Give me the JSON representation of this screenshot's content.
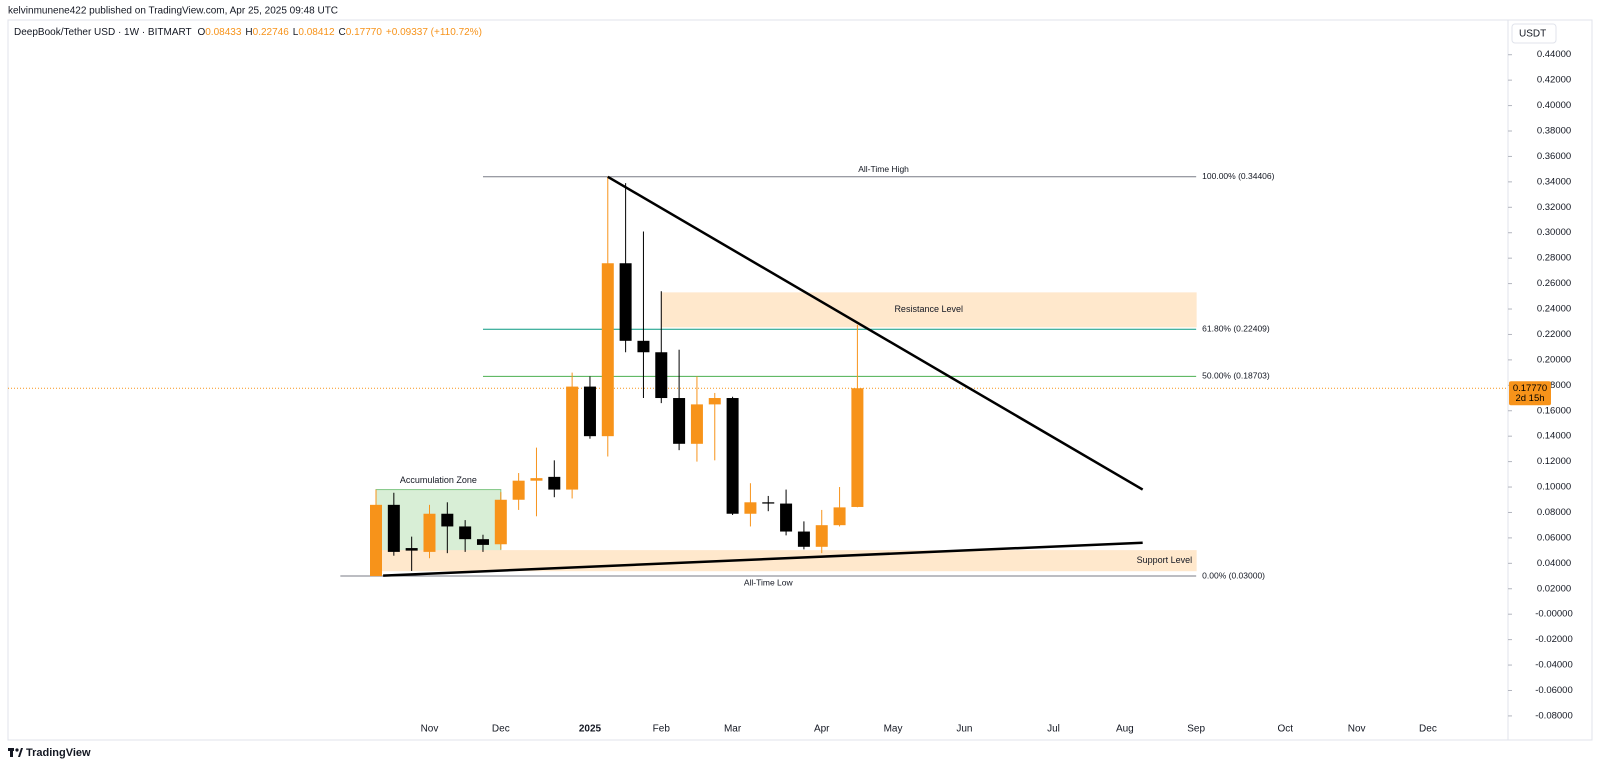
{
  "header": {
    "published": "kelvinmunene422 published on TradingView.com, Apr 25, 2025 09:48 UTC"
  },
  "footer": {
    "brand": "TradingView"
  },
  "chart_data": {
    "type": "candlestick",
    "title": "DeepBook/Tether USD · 1W · BITMART",
    "ohlc_legend": [
      {
        "key": "O",
        "value": "0.08433"
      },
      {
        "key": "H",
        "value": "0.22746"
      },
      {
        "key": "L",
        "value": "0.08412"
      },
      {
        "key": "C",
        "value": "0.17770"
      }
    ],
    "change": "+0.09337 (+110.72%)",
    "currency": "USDT",
    "x": [
      0,
      1,
      2,
      3,
      4,
      5,
      6,
      7,
      8,
      9,
      10,
      11,
      12,
      13,
      14,
      15,
      16,
      17,
      18,
      19,
      20,
      21,
      22,
      23,
      24,
      25,
      26,
      27
    ],
    "open": [
      0.03,
      0.086,
      0.052,
      0.049,
      0.079,
      0.069,
      0.059,
      0.055,
      0.09,
      0.105,
      0.108,
      0.098,
      0.179,
      0.14,
      0.276,
      0.215,
      0.206,
      0.17,
      0.134,
      0.165,
      0.17,
      0.079,
      0.088,
      0.087,
      0.065,
      0.053,
      0.07,
      0.08433
    ],
    "high": [
      0.098,
      0.0955,
      0.061,
      0.086,
      0.088,
      0.074,
      0.0625,
      0.096,
      0.111,
      0.131,
      0.121,
      0.19,
      0.187,
      0.34406,
      0.339,
      0.301,
      0.254,
      0.208,
      0.187,
      0.174,
      0.171,
      0.103,
      0.093,
      0.098,
      0.073,
      0.082,
      0.1,
      0.22746
    ],
    "low": [
      0.03,
      0.046,
      0.034,
      0.044,
      0.048,
      0.049,
      0.049,
      0.051,
      0.082,
      0.077,
      0.092,
      0.091,
      0.138,
      0.124,
      0.206,
      0.17,
      0.166,
      0.129,
      0.12,
      0.121,
      0.078,
      0.069,
      0.081,
      0.062,
      0.051,
      0.048,
      0.069,
      0.08412
    ],
    "close": [
      0.086,
      0.049,
      0.05,
      0.079,
      0.069,
      0.059,
      0.0545,
      0.09,
      0.105,
      0.107,
      0.098,
      0.179,
      0.14,
      0.276,
      0.215,
      0.206,
      0.17,
      0.134,
      0.165,
      0.17,
      0.079,
      0.088,
      0.087,
      0.065,
      0.053,
      0.07,
      0.084,
      0.1777
    ],
    "up_color": "#f7931a",
    "down_color": "#000000",
    "xlim": [
      -20.64,
      63.49
    ],
    "xticks": [
      {
        "value": 3,
        "label": "Nov"
      },
      {
        "value": 7,
        "label": "Dec"
      },
      {
        "value": 12,
        "label": "2025"
      },
      {
        "value": 16,
        "label": "Feb"
      },
      {
        "value": 20,
        "label": "Mar"
      },
      {
        "value": 25,
        "label": "Apr"
      },
      {
        "value": 29,
        "label": "May"
      },
      {
        "value": 33,
        "label": "Jun"
      },
      {
        "value": 38,
        "label": "Jul"
      },
      {
        "value": 42,
        "label": "Aug"
      },
      {
        "value": 46,
        "label": "Sep"
      },
      {
        "value": 51,
        "label": "Oct"
      },
      {
        "value": 55,
        "label": "Nov"
      },
      {
        "value": 59,
        "label": "Dec"
      }
    ],
    "ylim": [
      -0.084,
      0.45
    ],
    "yticks": [
      {
        "value": 0.44,
        "label": "0.44000"
      },
      {
        "value": 0.42,
        "label": "0.42000"
      },
      {
        "value": 0.4,
        "label": "0.40000"
      },
      {
        "value": 0.38,
        "label": "0.38000"
      },
      {
        "value": 0.36,
        "label": "0.36000"
      },
      {
        "value": 0.34,
        "label": "0.34000"
      },
      {
        "value": 0.32,
        "label": "0.32000"
      },
      {
        "value": 0.3,
        "label": "0.30000"
      },
      {
        "value": 0.28,
        "label": "0.28000"
      },
      {
        "value": 0.26,
        "label": "0.26000"
      },
      {
        "value": 0.24,
        "label": "0.24000"
      },
      {
        "value": 0.22,
        "label": "0.22000"
      },
      {
        "value": 0.2,
        "label": "0.20000"
      },
      {
        "value": 0.18,
        "label": "0.18000"
      },
      {
        "value": 0.16,
        "label": "0.16000"
      },
      {
        "value": 0.14,
        "label": "0.14000"
      },
      {
        "value": 0.12,
        "label": "0.12000"
      },
      {
        "value": 0.1,
        "label": "0.10000"
      },
      {
        "value": 0.08,
        "label": "0.08000"
      },
      {
        "value": 0.06,
        "label": "0.06000"
      },
      {
        "value": 0.04,
        "label": "0.04000"
      },
      {
        "value": 0.02,
        "label": "0.02000"
      },
      {
        "value": 0,
        "label": "-0.00000"
      },
      {
        "value": -0.02,
        "label": "-0.02000"
      },
      {
        "value": -0.04,
        "label": "-0.04000"
      },
      {
        "value": -0.06,
        "label": "-0.06000"
      },
      {
        "value": -0.08,
        "label": "-0.08000"
      }
    ],
    "grid": false,
    "zones": [
      {
        "label": "Accumulation Zone",
        "x": [
          0,
          7
        ],
        "y": [
          0.049,
          0.098
        ],
        "color": "#d8eed6",
        "border": "#81c784",
        "label_position": "top"
      },
      {
        "label": "Resistance Level",
        "x": [
          16,
          46
        ],
        "y": [
          0.226,
          0.2527
        ],
        "color": "#ffe8cc",
        "border": "#ffe8cc",
        "label_position": "center"
      },
      {
        "label": "Support Level",
        "x": [
          0,
          46
        ],
        "y": [
          0.0342,
          0.05
        ],
        "color": "#ffe8cc",
        "border": "#ffe8cc",
        "label_position": "right"
      }
    ],
    "fib_levels": [
      {
        "value": 0.34406,
        "label": "100.00% (0.34406)",
        "x": [
          6,
          46
        ],
        "color": "#787b86",
        "note": "All-Time High",
        "note_color": "#4caf50"
      },
      {
        "value": 0.22409,
        "label": "61.80% (0.22409)",
        "x": [
          6,
          46
        ],
        "color": "#089981"
      },
      {
        "value": 0.18703,
        "label": "50.00% (0.18703)",
        "x": [
          6,
          46
        ],
        "color": "#4caf50"
      },
      {
        "value": 0.03,
        "label": "0.00% (0.03000)",
        "x": [
          -2,
          46
        ],
        "color": "#787b86",
        "note": "All-Time Low",
        "note_color": "#4caf50"
      }
    ],
    "trendlines": [
      {
        "x": [
          13,
          43
        ],
        "y": [
          0.344,
          0.098
        ],
        "color": "#000000"
      },
      {
        "x": [
          0.4,
          43
        ],
        "y": [
          0.0303,
          0.0562
        ],
        "color": "#000000"
      }
    ],
    "price_tag": {
      "value": 0.1777,
      "label": "0.17770",
      "countdown": "2d 15h",
      "color": "#f7931a"
    }
  }
}
